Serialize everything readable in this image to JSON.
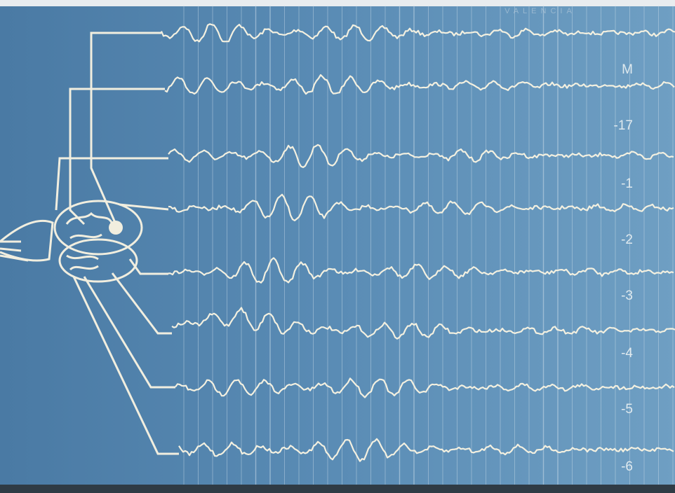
{
  "header": "VALENCIA",
  "channel_labels": [
    "M",
    "-17",
    "-1",
    "-2",
    "-3",
    "-4",
    "-5",
    "-6"
  ]
}
